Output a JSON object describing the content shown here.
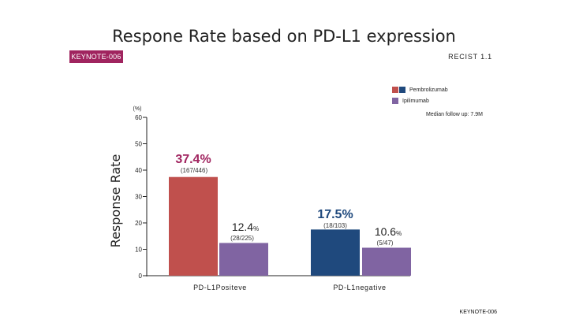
{
  "title": "Respone Rate based on PD-L1 expression",
  "study_badge": "KEYNOTE-006",
  "criteria": "RECIST 1.1",
  "followup": "Median follow up: 7.9M",
  "footer": "KEYNOTE-006",
  "colors": {
    "badge": "#a0245f",
    "positive_pembro": "#c0504d",
    "negative_pembro": "#1f497d",
    "ipilimumab": "#8064a2",
    "legend_pembro_a": "#c0504d",
    "legend_pembro_b": "#1f497d",
    "emphasis_text": "#a0245f",
    "negative_emphasis_text": "#1f497d"
  },
  "chart_data": {
    "type": "bar",
    "ylabel": "Response Rate",
    "yunit": "(%)",
    "ylim": [
      0,
      60
    ],
    "yticks": [
      0,
      10,
      20,
      30,
      40,
      50,
      60
    ],
    "categories": [
      "PD-L1Positeve",
      "PD-L1negative"
    ],
    "series": [
      {
        "name": "Pembrolizumab",
        "values": [
          37.4,
          17.5
        ],
        "labels": [
          "37.4%",
          "17.5%"
        ],
        "counts": [
          "(167/446)",
          "(18/103)"
        ]
      },
      {
        "name": "Ipilimumab",
        "values": [
          12.4,
          10.6
        ],
        "labels": [
          "12.4",
          "10.6"
        ],
        "label_units": [
          "%",
          "%"
        ],
        "counts": [
          "(28/225)",
          "(5/47)"
        ]
      }
    ],
    "legend_position": "top-right",
    "grid": false
  }
}
